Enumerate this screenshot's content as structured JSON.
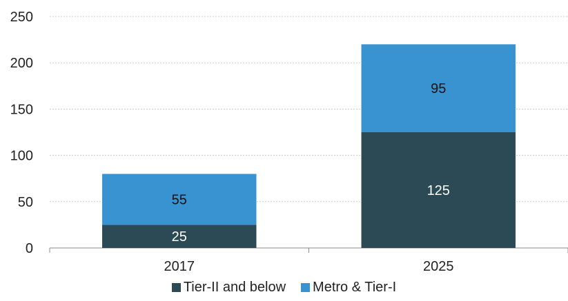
{
  "colors": {
    "tier2": "#2b4a55",
    "metro": "#3a93d1",
    "grid": "#c9c9c9",
    "axis": "#8a8a8a",
    "text": "#222222",
    "label_dark": "#111111",
    "label_light": "#ffffff"
  },
  "chart_data": {
    "type": "bar",
    "stacked": true,
    "categories": [
      "2017",
      "2025"
    ],
    "series": [
      {
        "name": "Tier-II and below",
        "values": [
          25,
          125
        ],
        "color": "#2b4a55"
      },
      {
        "name": "Metro & Tier-I",
        "values": [
          55,
          95
        ],
        "color": "#3a93d1"
      }
    ],
    "title": "",
    "xlabel": "",
    "ylabel": "",
    "ylim": [
      0,
      250
    ],
    "yticks": [
      "0",
      "50",
      "100",
      "150",
      "200",
      "250"
    ],
    "grid": true,
    "legend_position": "bottom"
  },
  "legend": {
    "items": [
      "Tier-II and below",
      "Metro & Tier-I"
    ]
  }
}
